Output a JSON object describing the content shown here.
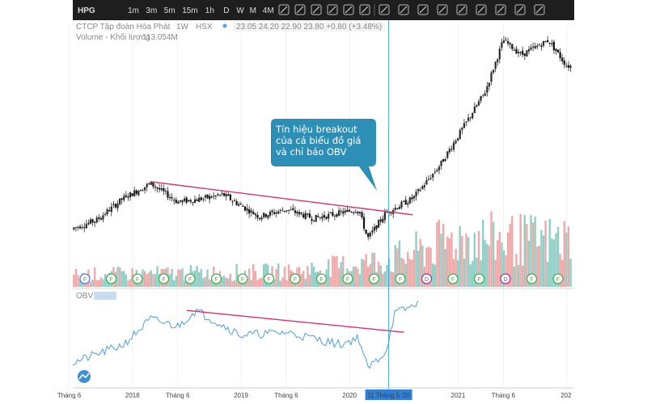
{
  "toolbar": {
    "symbol": "HPG",
    "intervals": [
      "1m",
      "3m",
      "5m",
      "15m",
      "1h",
      "D",
      "W",
      "M",
      "4M"
    ],
    "active_interval": "W",
    "icons": [
      "candles-icon",
      "line-chart-icon",
      "compare-icon",
      "indicator-add-icon",
      "trend-line-icon",
      "horizontal-line-icon",
      "cursor-icon",
      "pitchfork-icon",
      "brush-icon",
      "fib-icon",
      "pattern-icon",
      "shape-icon",
      "rectangle-icon",
      "text-icon",
      "diamond-icon"
    ]
  },
  "legend": {
    "company": "CTCP Tập đoàn Hòa Phát",
    "interval": "1W",
    "exchange": "HSX",
    "ohlc": "23.05 24.20 22.90 23.80 +0.80 (+3.48%)",
    "volume_label": "Volume - Khối lượng",
    "volume_value": "113.054M",
    "obv_label": "OBV"
  },
  "callout": {
    "lines": [
      "Tín hiệu breakout",
      "của cả biểu đồ giá",
      "và chỉ báo OBV"
    ]
  },
  "colors": {
    "up": "#2a2a2a",
    "vol_up": "#8fcfc6",
    "vol_down": "#f0a9a9",
    "obv_line": "#4a9fe0",
    "trend_line": "#e0306a",
    "crosshair": "#40a8e0",
    "callout": "#2e8fb6",
    "toolbar": "#1e1e1e",
    "event_green": "#3cb44a",
    "event_blue": "#4a7ff0",
    "event_purple": "#9b3a9b"
  },
  "chart_data": {
    "type": "candlestick",
    "symbol": "HPG",
    "x_ticks": [
      "Tháng 6",
      "2018",
      "Tháng 6",
      "2019",
      "Tháng 6",
      "2020",
      "11 Tháng 5 '20",
      "2021",
      "Tháng 6",
      "202"
    ],
    "x_tick_dates": [
      "2017-06",
      "2018-01",
      "2018-06",
      "2019-01",
      "2019-06",
      "2020-01",
      "2020-05-11",
      "2021-01",
      "2021-06",
      "2022-01"
    ],
    "crosshair_date": "2020-05-11",
    "price_path": [
      [
        "2017-06",
        14.5
      ],
      [
        "2017-09",
        17
      ],
      [
        "2017-12",
        23
      ],
      [
        "2018-03",
        27
      ],
      [
        "2018-06",
        22
      ],
      [
        "2018-09",
        23
      ],
      [
        "2018-11",
        24
      ],
      [
        "2019-01",
        21
      ],
      [
        "2019-03",
        18
      ],
      [
        "2019-06",
        20
      ],
      [
        "2019-09",
        17.5
      ],
      [
        "2019-12",
        19
      ],
      [
        "2020-02",
        20
      ],
      [
        "2020-03",
        12
      ],
      [
        "2020-05",
        19
      ],
      [
        "2020-08",
        23
      ],
      [
        "2020-11",
        32
      ],
      [
        "2021-01",
        40
      ],
      [
        "2021-04",
        52
      ],
      [
        "2021-06",
        66
      ],
      [
        "2021-08",
        62
      ],
      [
        "2021-11",
        66
      ],
      [
        "2022-01",
        59
      ]
    ],
    "volume_trend": [
      [
        2017.5,
        0.2
      ],
      [
        2019.5,
        0.25
      ],
      [
        2020.4,
        0.45
      ],
      [
        2021.0,
        0.8
      ],
      [
        2021.9,
        0.75
      ]
    ],
    "obv_path": [
      [
        "2017-06",
        8
      ],
      [
        "2017-12",
        35
      ],
      [
        "2018-03",
        70
      ],
      [
        "2018-06",
        60
      ],
      [
        "2018-08",
        82
      ],
      [
        "2019-01",
        48
      ],
      [
        "2019-06",
        52
      ],
      [
        "2019-12",
        35
      ],
      [
        "2020-02",
        45
      ],
      [
        "2020-03",
        2
      ],
      [
        "2020-05",
        25
      ],
      [
        "2020-06",
        78
      ],
      [
        "2020-08",
        88
      ],
      [
        "2020-10",
        115
      ]
    ],
    "trend_lines": {
      "price": [
        [
          "2018-03",
          27.5
        ],
        [
          "2020-08",
          18.5
        ]
      ],
      "obv": [
        [
          "2018-07",
          82
        ],
        [
          "2020-07",
          52
        ]
      ]
    },
    "volume_event_markers": [
      "F",
      "F",
      "F",
      "F",
      "F",
      "F",
      "F",
      "F",
      "F",
      "F",
      "F",
      "F",
      "F",
      "D",
      "F",
      "F",
      "D",
      "F",
      "F"
    ]
  }
}
